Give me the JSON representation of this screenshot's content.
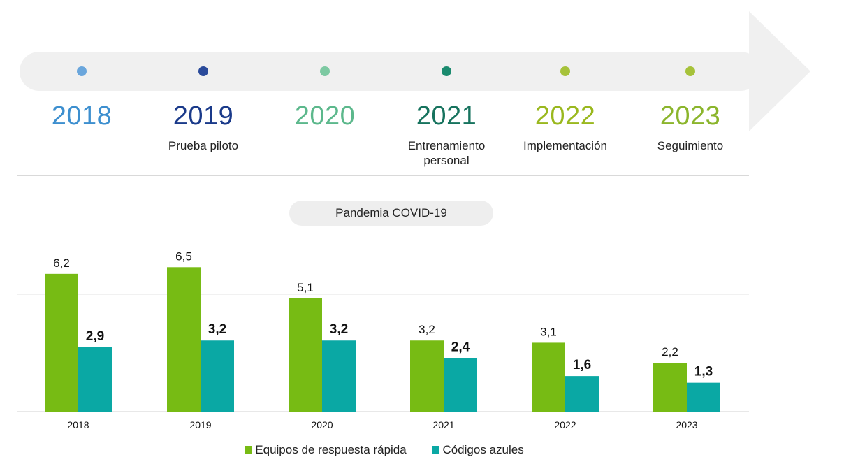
{
  "timeline": {
    "points": [
      {
        "year": "2018",
        "label": "",
        "color": "#3d8fcf",
        "dot": "#6aa6dc"
      },
      {
        "year": "2019",
        "label": "Prueba piloto",
        "color": "#1a3a8a",
        "dot": "#2a4a9a"
      },
      {
        "year": "2020",
        "label": "",
        "color": "#5cb88c",
        "dot": "#7dc9a2"
      },
      {
        "year": "2021",
        "label": "Entrenamiento personal",
        "color": "#17735e",
        "dot": "#1a8a6e"
      },
      {
        "year": "2022",
        "label": "Implementación",
        "color": "#9ab81e",
        "dot": "#a6c23a"
      },
      {
        "year": "2023",
        "label": "Seguimiento",
        "color": "#8bb52c",
        "dot": "#a6c23a"
      }
    ]
  },
  "annotation": {
    "pandemic_label": "Pandemia COVID-19"
  },
  "chart_data": {
    "type": "bar",
    "title": "",
    "xlabel": "",
    "ylabel": "",
    "categories": [
      "2018",
      "2019",
      "2020",
      "2021",
      "2022",
      "2023"
    ],
    "series": [
      {
        "name": "Equipos de respuesta rápida",
        "values": [
          6.2,
          6.5,
          5.1,
          3.2,
          3.1,
          2.2
        ],
        "labels": [
          "6,2",
          "6,5",
          "5,1",
          "3,2",
          "3,1",
          "2,2"
        ],
        "color": "#77bb14"
      },
      {
        "name": "Códigos azules",
        "values": [
          2.9,
          3.2,
          3.2,
          2.4,
          1.6,
          1.3
        ],
        "labels": [
          "2,9",
          "3,2",
          "3,2",
          "2,4",
          "1,6",
          "1,3"
        ],
        "color": "#0aa8a4"
      }
    ],
    "ylim": [
      0,
      7
    ],
    "grid": "horizontal",
    "legend": "bottom-center"
  },
  "colors": {
    "axis": "#d0d0d0",
    "arrow": "#f0f0f0",
    "pill": "#eeeeee"
  }
}
